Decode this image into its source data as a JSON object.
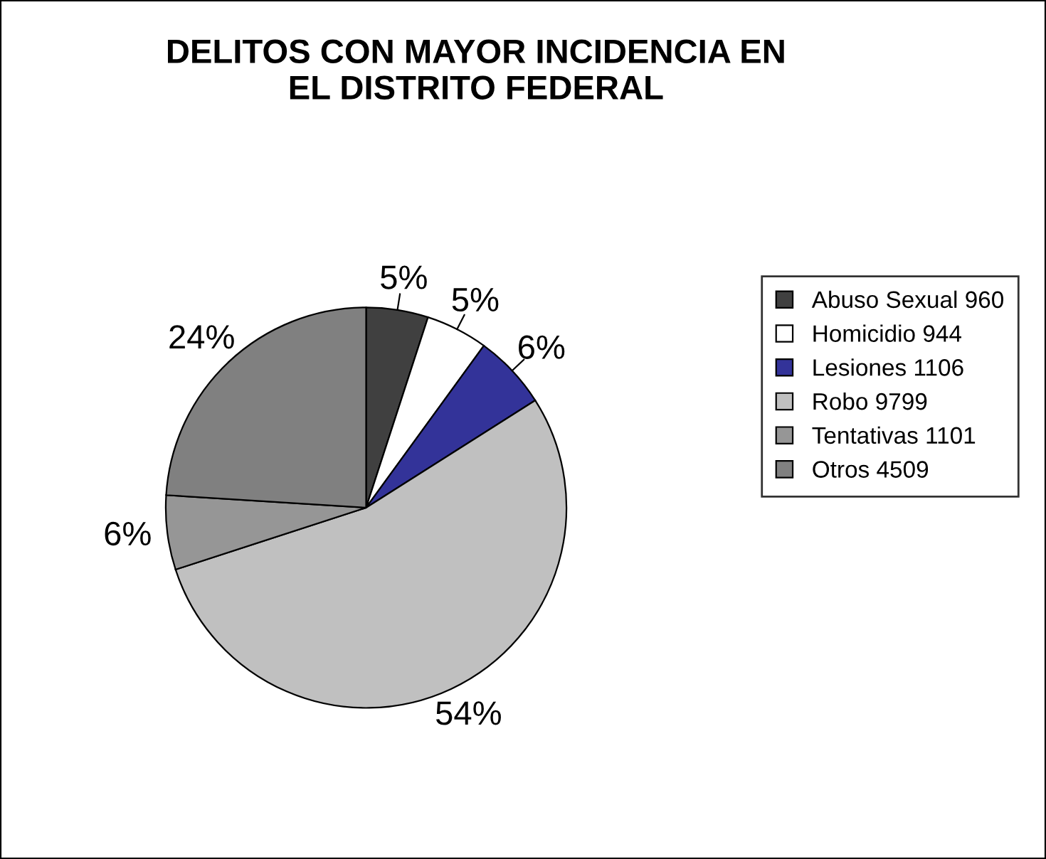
{
  "chart_data": {
    "type": "pie",
    "title": "DELITOS CON MAYOR INCIDENCIA EN\nEL DISTRITO FEDERAL",
    "categories": [
      "Abuso Sexual 960",
      "Homicidio 944",
      "Lesiones 1106",
      "Robo 9799",
      "Tentativas 1101",
      "Otros 4509"
    ],
    "values": [
      5,
      5,
      6,
      54,
      6,
      24
    ],
    "value_labels": [
      "5%",
      "5%",
      "6%",
      "54%",
      "6%",
      "24%"
    ],
    "colors": [
      "#404040",
      "#ffffff",
      "#333399",
      "#c0c0c0",
      "#969696",
      "#808080"
    ],
    "legend": "right"
  }
}
